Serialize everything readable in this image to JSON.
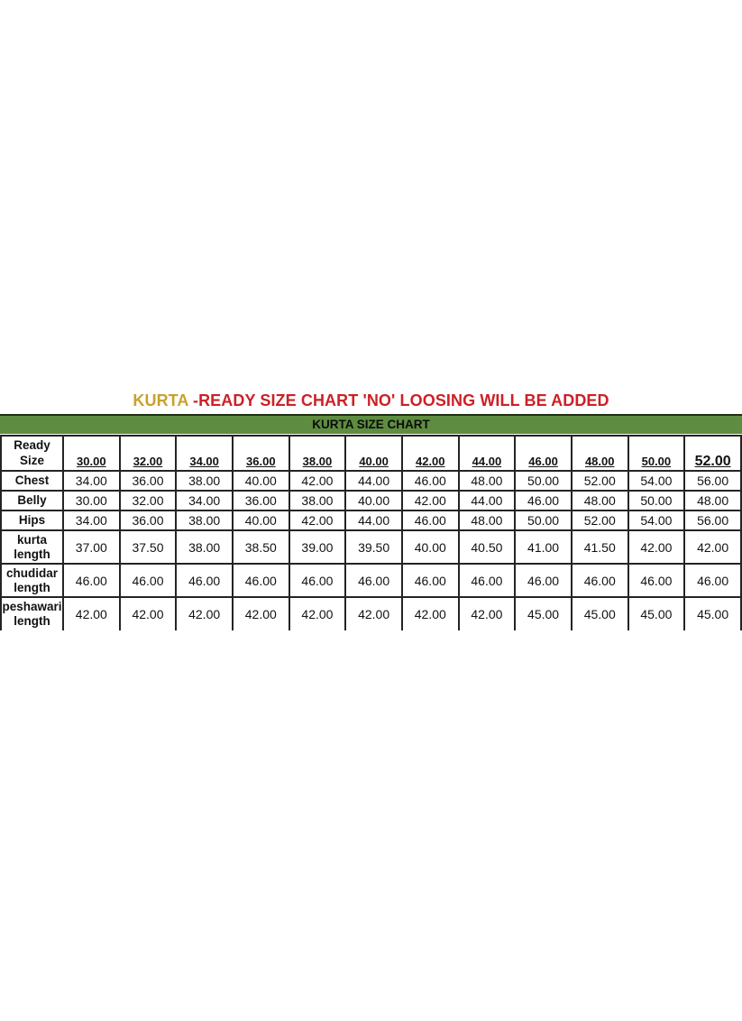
{
  "title": {
    "highlight": "KURTA",
    "rest": " -READY SIZE CHART 'NO' LOOSING WILL BE ADDED"
  },
  "banner": {
    "label": "KURTA SIZE CHART"
  },
  "colors": {
    "title_highlight": "#c8a22b",
    "title_rest": "#cc2127",
    "banner_background": "#5e8c40",
    "banner_text": "#0b0b0b",
    "table_border": "#242424"
  },
  "chart_data": {
    "type": "table",
    "title": "KURTA -READY SIZE CHART 'NO' LOOSING WILL BE ADDED",
    "subtitle": "KURTA SIZE CHART",
    "corner_label": "Ready Size",
    "columns": [
      "30.00",
      "32.00",
      "34.00",
      "36.00",
      "38.00",
      "40.00",
      "42.00",
      "44.00",
      "46.00",
      "48.00",
      "50.00",
      "52.00"
    ],
    "rows": [
      {
        "label": "Chest",
        "values": [
          "34.00",
          "36.00",
          "38.00",
          "40.00",
          "42.00",
          "44.00",
          "46.00",
          "48.00",
          "50.00",
          "52.00",
          "54.00",
          "56.00"
        ]
      },
      {
        "label": "Belly",
        "values": [
          "30.00",
          "32.00",
          "34.00",
          "36.00",
          "38.00",
          "40.00",
          "42.00",
          "44.00",
          "46.00",
          "48.00",
          "50.00",
          "48.00"
        ]
      },
      {
        "label": "Hips",
        "values": [
          "34.00",
          "36.00",
          "38.00",
          "40.00",
          "42.00",
          "44.00",
          "46.00",
          "48.00",
          "50.00",
          "52.00",
          "54.00",
          "56.00"
        ]
      },
      {
        "label": "kurta length",
        "values": [
          "37.00",
          "37.50",
          "38.00",
          "38.50",
          "39.00",
          "39.50",
          "40.00",
          "40.50",
          "41.00",
          "41.50",
          "42.00",
          "42.00"
        ]
      },
      {
        "label": "chudidar length",
        "values": [
          "46.00",
          "46.00",
          "46.00",
          "46.00",
          "46.00",
          "46.00",
          "46.00",
          "46.00",
          "46.00",
          "46.00",
          "46.00",
          "46.00"
        ]
      },
      {
        "label": "peshawari length",
        "values": [
          "42.00",
          "42.00",
          "42.00",
          "42.00",
          "42.00",
          "42.00",
          "42.00",
          "42.00",
          "45.00",
          "45.00",
          "45.00",
          "45.00"
        ]
      }
    ]
  }
}
